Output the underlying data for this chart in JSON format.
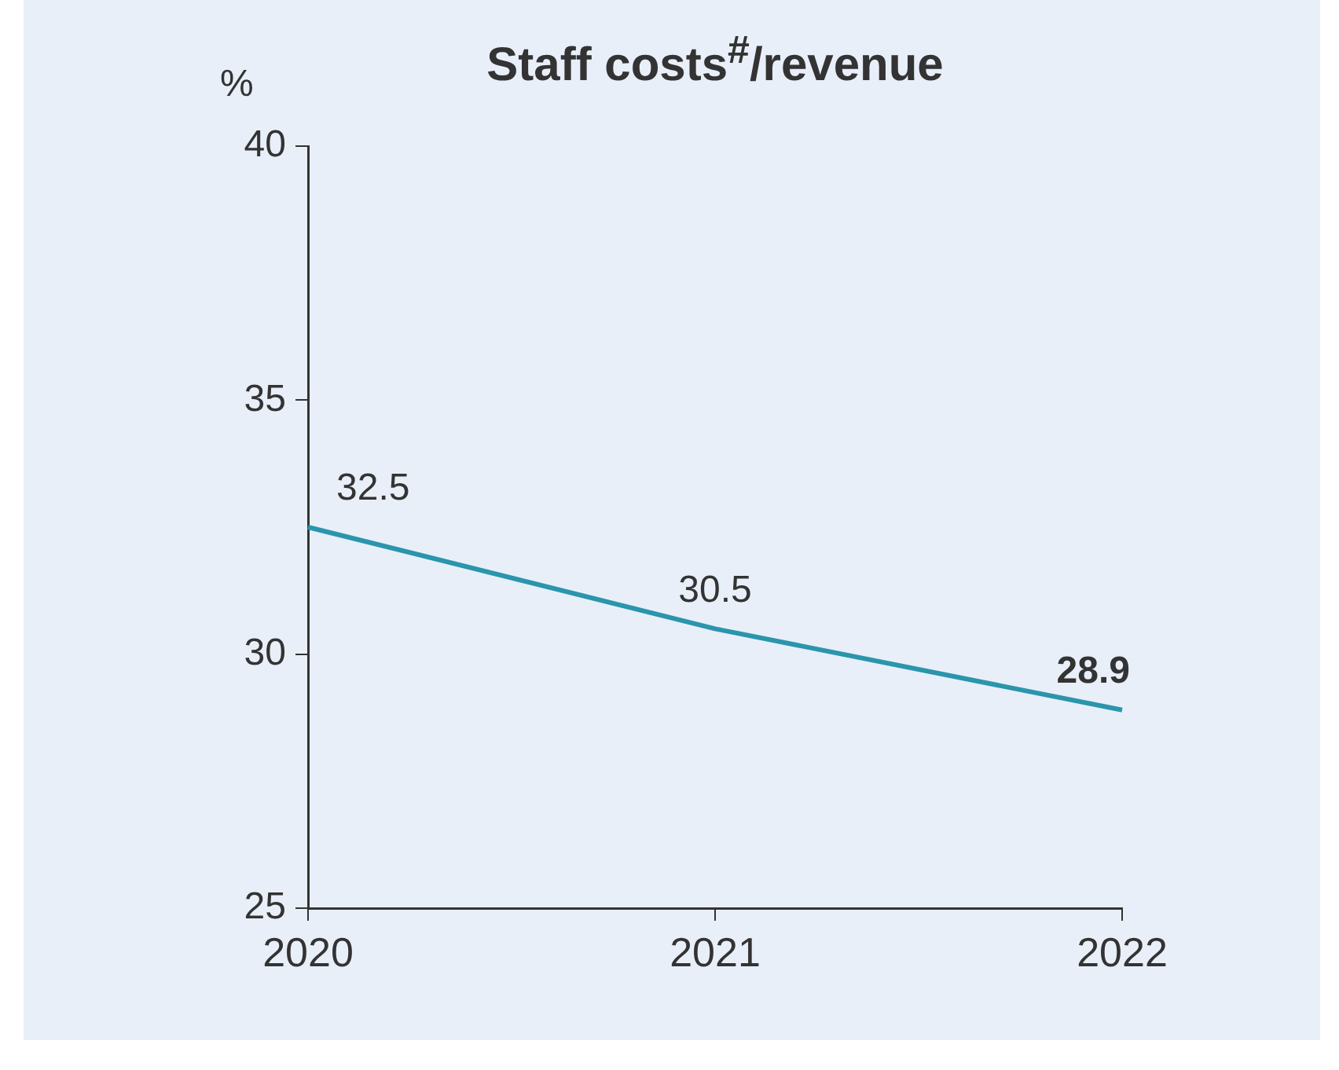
{
  "chart_data": {
    "type": "line",
    "title": "Staff costs$^{#}$/revenue",
    "ylabel": "%",
    "categories": [
      "2020",
      "2021",
      "2022"
    ],
    "series": [
      {
        "color": "#2a95ad",
        "values": [
          32.5,
          30.5,
          28.9
        ]
      }
    ],
    "ylim": [
      25,
      40
    ],
    "yticks": [
      25,
      30,
      35,
      40
    ],
    "grid": false,
    "legend": false,
    "marker": "none",
    "line_style": "solid",
    "data_labels": true
  }
}
